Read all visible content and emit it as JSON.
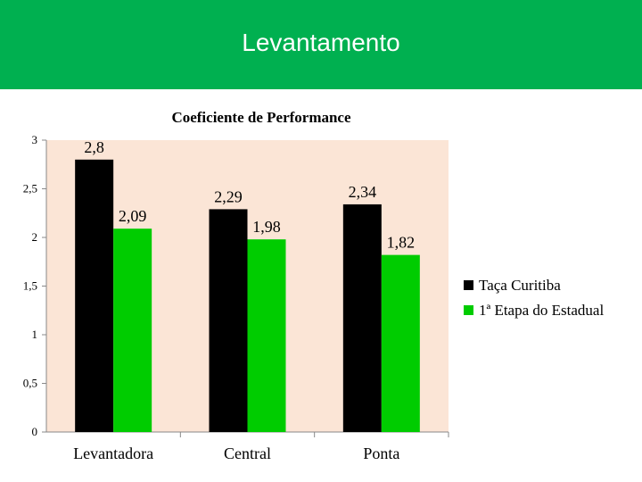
{
  "slide": {
    "title": "Levantamento"
  },
  "colors": {
    "header_bg": "#00b050",
    "plot_bg": "#fbe5d6",
    "series1": "#000000",
    "series2": "#00cc00"
  },
  "chart_data": {
    "type": "bar",
    "title": "Coeficiente de Performance",
    "categories": [
      "Levantadora",
      "Central",
      "Ponta"
    ],
    "series": [
      {
        "name": "Taça Curitiba",
        "values": [
          2.8,
          2.29,
          2.34
        ],
        "labels": [
          "2,8",
          "2,29",
          "2,34"
        ]
      },
      {
        "name": "1ª Etapa do Estadual",
        "values": [
          2.09,
          1.98,
          1.82
        ],
        "labels": [
          "2,09",
          "1,98",
          "1,82"
        ]
      }
    ],
    "ylim": [
      0,
      3
    ],
    "yticks": [
      0,
      0.5,
      1,
      1.5,
      2,
      2.5,
      3
    ],
    "ytick_labels": [
      "0",
      "0,5",
      "1",
      "1,5",
      "2",
      "2,5",
      "3"
    ],
    "xlabel": "",
    "ylabel": "",
    "legend_position": "right"
  }
}
